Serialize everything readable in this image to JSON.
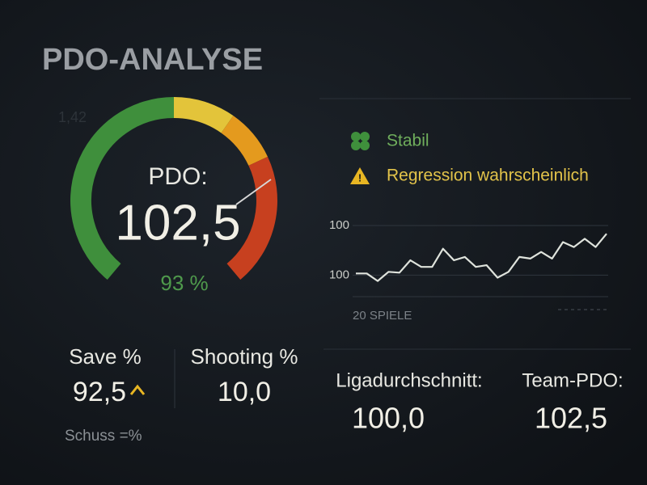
{
  "title": "PDO-ANALYSE",
  "faint_label": "1,42",
  "gauge": {
    "label": "PDO:",
    "value_label": "102,5",
    "sub_label": "93 %"
  },
  "legend": [
    {
      "label": "Stabil"
    },
    {
      "label": "Regression wahrscheinlich"
    }
  ],
  "chart_data": {
    "type": "line",
    "x_label": "20 SPIELE",
    "top_label": "100",
    "ylim": [
      98.7,
      103
    ],
    "yticks": [
      100
    ],
    "series": [
      {
        "color": "#dfe3dc",
        "values": [
          100.1,
          100.1,
          99.65,
          100.2,
          100.15,
          100.9,
          100.5,
          100.5,
          101.6,
          100.9,
          101.1,
          100.5,
          100.6,
          99.85,
          100.2,
          101.1,
          101,
          101.4,
          101,
          102,
          101.7,
          102.2,
          101.7,
          102.5
        ]
      }
    ]
  },
  "stats": [
    {
      "label": "Save %",
      "value": "92,5"
    },
    {
      "label": "Shooting %",
      "value": "10,0"
    },
    {
      "label": "Ligadurchschnitt:",
      "value": "100,0"
    },
    {
      "label": "Team-PDO:",
      "value": "102,5"
    }
  ],
  "footnote": "Schuss =%"
}
